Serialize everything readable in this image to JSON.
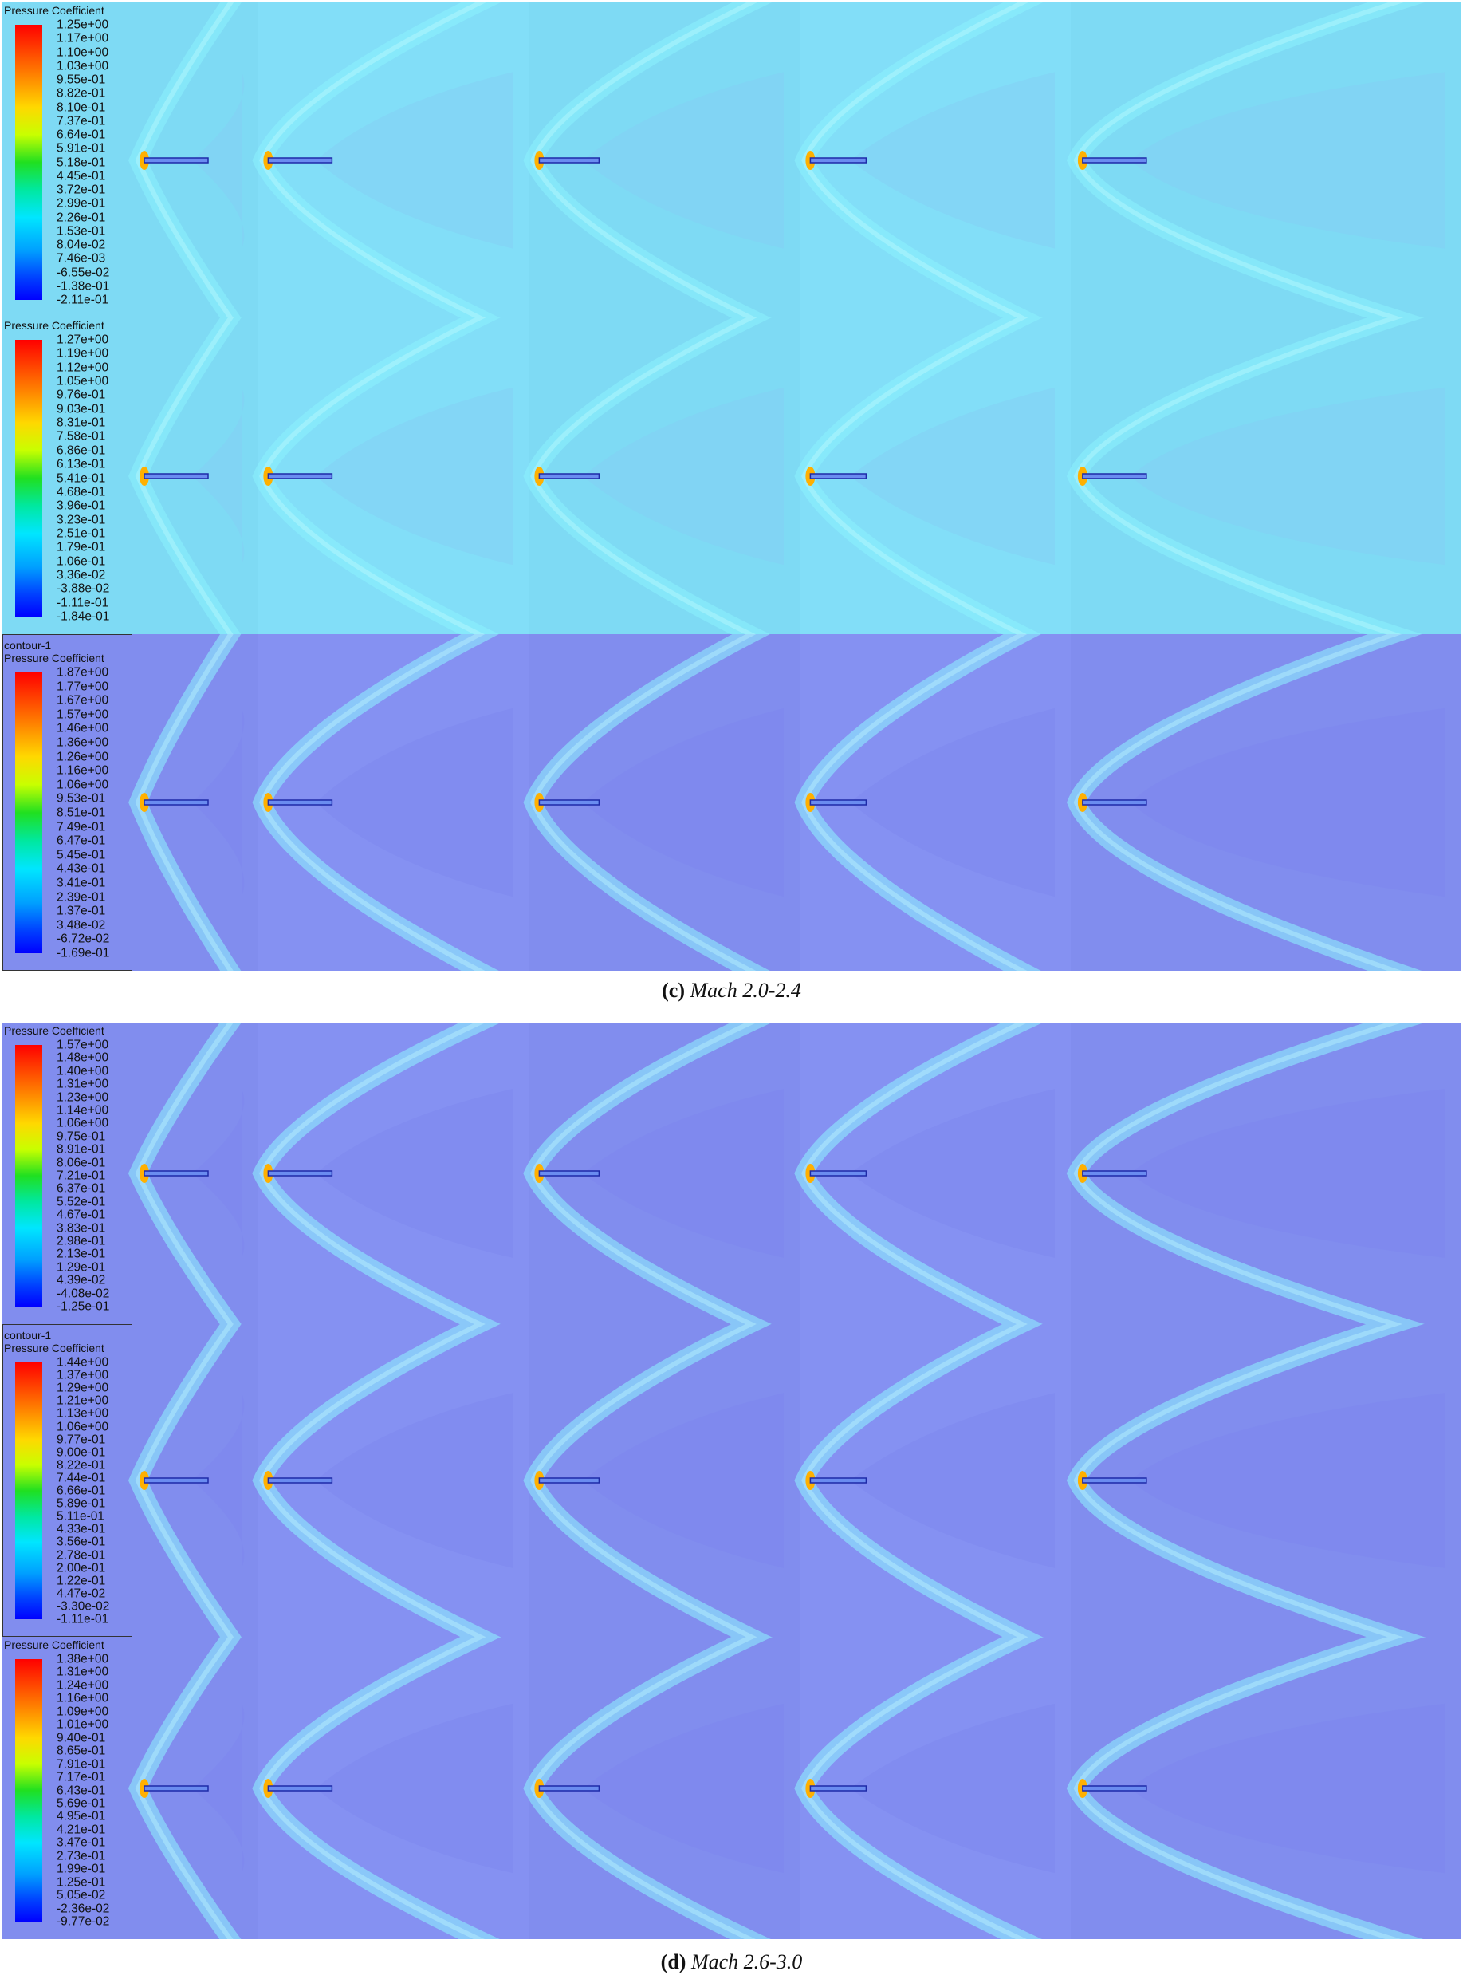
{
  "colors": {
    "field_cyan": "#80def8",
    "field_violet": "#8490f2",
    "shock": "#8ef6ff",
    "stagnation": "#ffb000"
  },
  "panels": [
    {
      "id": "c1",
      "contour_label": "",
      "legend_title": "Pressure Coefficient",
      "ticks": [
        "1.25e+00",
        "1.17e+00",
        "1.10e+00",
        "1.03e+00",
        "9.55e-01",
        "8.82e-01",
        "8.10e-01",
        "7.37e-01",
        "6.64e-01",
        "5.91e-01",
        "5.18e-01",
        "4.45e-01",
        "3.72e-01",
        "2.99e-01",
        "2.26e-01",
        "1.53e-01",
        "8.04e-02",
        "7.46e-03",
        "-6.55e-02",
        "-1.38e-01",
        "-2.11e-01"
      ]
    },
    {
      "id": "c2",
      "contour_label": "",
      "legend_title": "Pressure Coefficient",
      "ticks": [
        "1.27e+00",
        "1.19e+00",
        "1.12e+00",
        "1.05e+00",
        "9.76e-01",
        "9.03e-01",
        "8.31e-01",
        "7.58e-01",
        "6.86e-01",
        "6.13e-01",
        "5.41e-01",
        "4.68e-01",
        "3.96e-01",
        "3.23e-01",
        "2.51e-01",
        "1.79e-01",
        "1.06e-01",
        "3.36e-02",
        "-3.88e-02",
        "-1.11e-01",
        "-1.84e-01"
      ]
    },
    {
      "id": "c3",
      "contour_label": "contour-1",
      "legend_title": "Pressure Coefficient",
      "ticks": [
        "1.87e+00",
        "1.77e+00",
        "1.67e+00",
        "1.57e+00",
        "1.46e+00",
        "1.36e+00",
        "1.26e+00",
        "1.16e+00",
        "1.06e+00",
        "9.53e-01",
        "8.51e-01",
        "7.49e-01",
        "6.47e-01",
        "5.45e-01",
        "4.43e-01",
        "3.41e-01",
        "2.39e-01",
        "1.37e-01",
        "3.48e-02",
        "-6.72e-02",
        "-1.69e-01"
      ]
    },
    {
      "id": "d1",
      "contour_label": "",
      "legend_title": "Pressure Coefficient",
      "ticks": [
        "1.57e+00",
        "1.48e+00",
        "1.40e+00",
        "1.31e+00",
        "1.23e+00",
        "1.14e+00",
        "1.06e+00",
        "9.75e-01",
        "8.91e-01",
        "8.06e-01",
        "7.21e-01",
        "6.37e-01",
        "5.52e-01",
        "4.67e-01",
        "3.83e-01",
        "2.98e-01",
        "2.13e-01",
        "1.29e-01",
        "4.39e-02",
        "-4.08e-02",
        "-1.25e-01"
      ]
    },
    {
      "id": "d2",
      "contour_label": "contour-1",
      "legend_title": "Pressure Coefficient",
      "ticks": [
        "1.44e+00",
        "1.37e+00",
        "1.29e+00",
        "1.21e+00",
        "1.13e+00",
        "1.06e+00",
        "9.77e-01",
        "9.00e-01",
        "8.22e-01",
        "7.44e-01",
        "6.66e-01",
        "5.89e-01",
        "5.11e-01",
        "4.33e-01",
        "3.56e-01",
        "2.78e-01",
        "2.00e-01",
        "1.22e-01",
        "4.47e-02",
        "-3.30e-02",
        "-1.11e-01"
      ]
    },
    {
      "id": "d3",
      "contour_label": "",
      "legend_title": "Pressure Coefficient",
      "ticks": [
        "1.38e+00",
        "1.31e+00",
        "1.24e+00",
        "1.16e+00",
        "1.09e+00",
        "1.01e+00",
        "9.40e-01",
        "8.65e-01",
        "7.91e-01",
        "7.17e-01",
        "6.43e-01",
        "5.69e-01",
        "4.95e-01",
        "4.21e-01",
        "3.47e-01",
        "2.73e-01",
        "1.99e-01",
        "1.25e-01",
        "5.05e-02",
        "-2.36e-02",
        "-9.77e-02"
      ]
    }
  ],
  "captions": {
    "c": {
      "letter": "(c)",
      "text": " Mach 2.0-2.4"
    },
    "d": {
      "letter": "(d)",
      "text": " Mach 2.6-3.0"
    }
  }
}
